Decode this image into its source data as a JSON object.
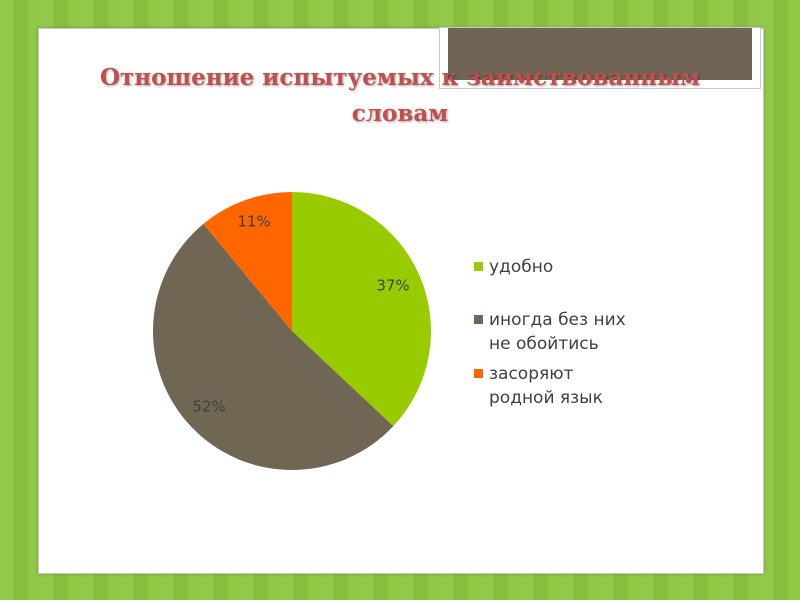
{
  "slide": {
    "title_line1": "Отношение испытуемых к заимствованным",
    "title_line2": "словам"
  },
  "colors": {
    "background": "#8cc63f",
    "title": "#c0504d",
    "tab": "#6f6456"
  },
  "chart_data": {
    "type": "pie",
    "title": "",
    "start": "12 o'clock",
    "direction": "clockwise",
    "legend_position": "right",
    "slices": [
      {
        "label": "удобно",
        "legend_lines": [
          "удобно"
        ],
        "value": 37,
        "display": "37%",
        "color": "#99cc00"
      },
      {
        "label": "иногда без них не обойтись",
        "legend_lines": [
          "иногда без них",
          "не обойтись"
        ],
        "value": 52,
        "display": "52%",
        "color": "#6f6654"
      },
      {
        "label": "засоряют родной язык",
        "legend_lines": [
          "засоряют",
          "родной язык"
        ],
        "value": 11,
        "display": "11%",
        "color": "#ff6600"
      }
    ]
  }
}
